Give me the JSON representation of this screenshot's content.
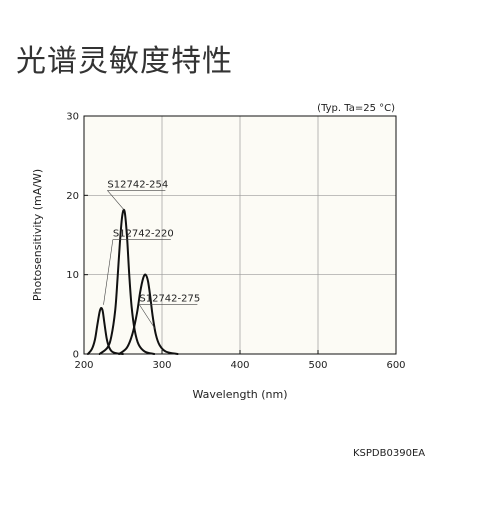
{
  "page": {
    "title": "光谱灵敏度特性",
    "doc_code": "KSPDB0390EA"
  },
  "chart_data": {
    "type": "line",
    "title": "",
    "note": "(Typ. Ta=25 °C)",
    "xlabel": "Wavelength (nm)",
    "ylabel": "Photosensitivity (mA/W)",
    "xlim": [
      200,
      600
    ],
    "ylim": [
      0,
      30
    ],
    "xticks": [
      200,
      300,
      400,
      500,
      600
    ],
    "yticks": [
      0,
      10,
      20,
      30
    ],
    "grid": true,
    "series": [
      {
        "name": "S12742-254",
        "x": [
          220,
          230,
          235,
          240,
          243,
          246,
          249,
          252,
          255,
          258,
          261,
          265,
          270,
          278,
          290
        ],
        "y": [
          0,
          0.8,
          2.2,
          5.5,
          9.5,
          14.0,
          17.4,
          18.0,
          15.0,
          10.0,
          6.0,
          3.0,
          1.2,
          0.3,
          0
        ]
      },
      {
        "name": "S12742-220",
        "x": [
          205,
          210,
          214,
          217,
          220,
          222,
          224,
          226,
          229,
          232,
          236,
          242,
          250
        ],
        "y": [
          0,
          0.6,
          1.8,
          3.6,
          5.3,
          5.8,
          5.4,
          4.0,
          2.0,
          0.9,
          0.3,
          0.08,
          0
        ]
      },
      {
        "name": "S12742-275",
        "x": [
          245,
          255,
          262,
          268,
          272,
          276,
          279,
          282,
          285,
          288,
          292,
          297,
          305,
          320
        ],
        "y": [
          0,
          0.8,
          2.5,
          5.2,
          7.8,
          9.6,
          10.0,
          9.2,
          7.2,
          4.8,
          2.5,
          1.1,
          0.3,
          0
        ]
      }
    ],
    "series_labels": [
      {
        "name": "S12742-254",
        "at": [
          230,
          21
        ],
        "leader_to": [
          251,
          18.2
        ]
      },
      {
        "name": "S12742-220",
        "at": [
          237,
          14.8
        ],
        "leader_to": [
          225,
          6.2
        ]
      },
      {
        "name": "S12742-275",
        "at": [
          271,
          6.6
        ],
        "leader_to": [
          291,
          3.2
        ]
      }
    ]
  }
}
